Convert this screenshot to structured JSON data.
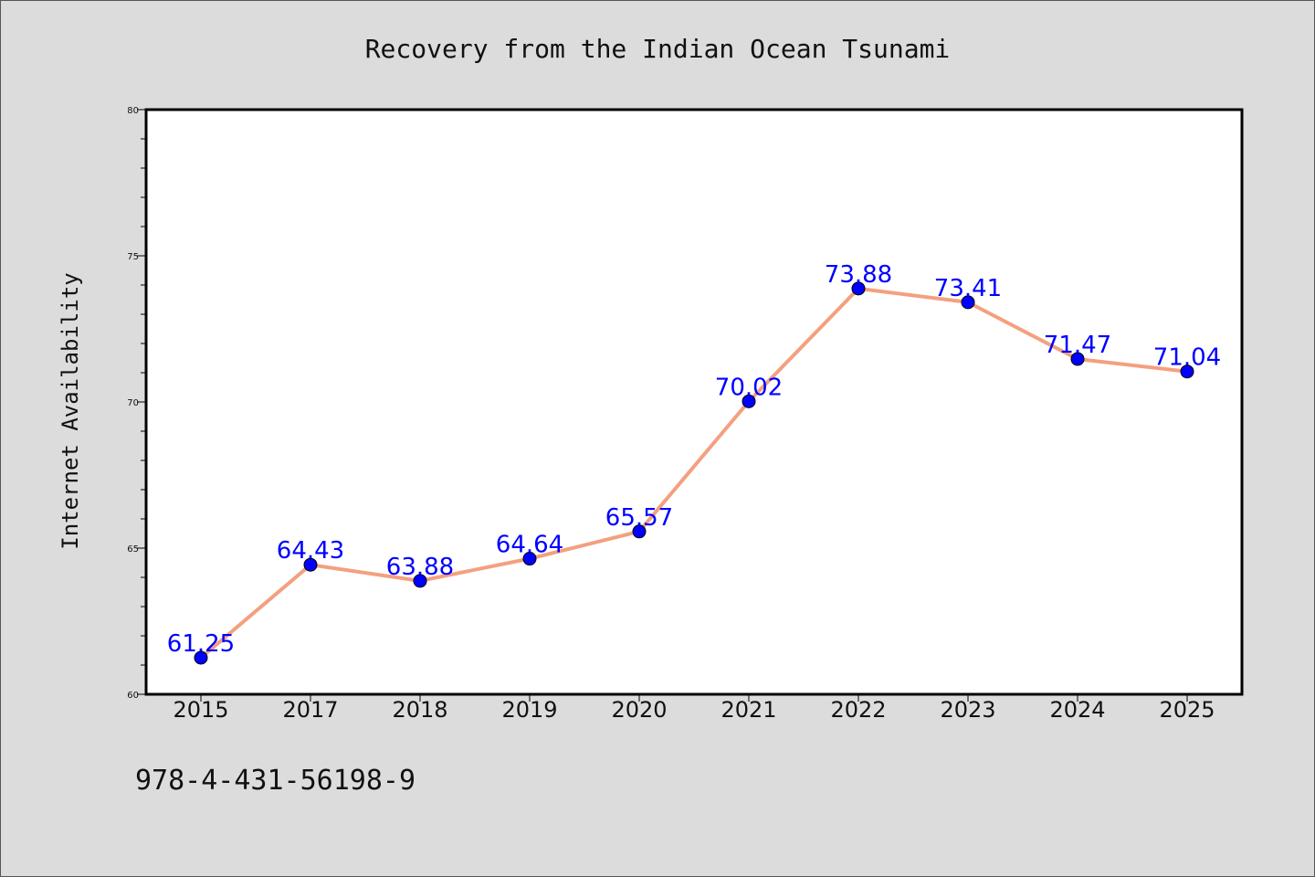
{
  "colors": {
    "background": "#dcdcdc",
    "plot_background": "#ffffff",
    "line": "#f4a07f",
    "marker": "#0000ff",
    "label": "#0000ff"
  },
  "footer": {
    "code": "978-4-431-56198-9"
  },
  "chart_data": {
    "type": "line",
    "title": "Recovery from the Indian Ocean Tsunami",
    "xlabel": "",
    "ylabel": "Internet Availability",
    "categories": [
      "2015",
      "2017",
      "2018",
      "2019",
      "2020",
      "2021",
      "2022",
      "2023",
      "2024",
      "2025"
    ],
    "series": [
      {
        "values": [
          61.25,
          64.43,
          63.88,
          64.64,
          65.57,
          70.02,
          73.88,
          73.41,
          71.47,
          71.04
        ]
      }
    ],
    "data_labels": [
      "61.25",
      "64.43",
      "63.88",
      "64.64",
      "65.57",
      "70.02",
      "73.88",
      "73.41",
      "71.47",
      "71.04"
    ],
    "ylim": [
      60,
      80
    ],
    "yticks": [
      "60",
      "65",
      "70",
      "75",
      "80"
    ],
    "grid": false,
    "legend": "none"
  }
}
